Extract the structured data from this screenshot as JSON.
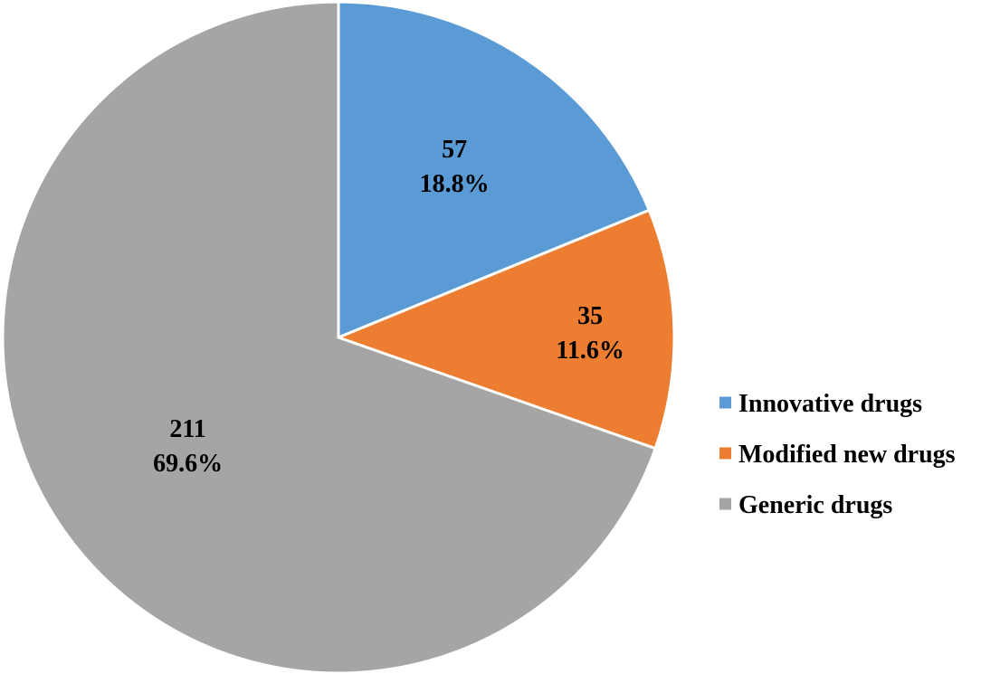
{
  "chart_data": {
    "type": "pie",
    "categories": [
      "Innovative drugs",
      "Modified new drugs",
      "Generic drugs"
    ],
    "values": [
      57,
      35,
      211
    ],
    "percent_labels": [
      "18.8%",
      "11.6%",
      "69.6%"
    ],
    "colors": [
      "#5b9bd5",
      "#ed7d31",
      "#a5a5a5"
    ],
    "start_angle": "12 o'clock",
    "direction": "clockwise",
    "legend": "right",
    "title": ""
  }
}
